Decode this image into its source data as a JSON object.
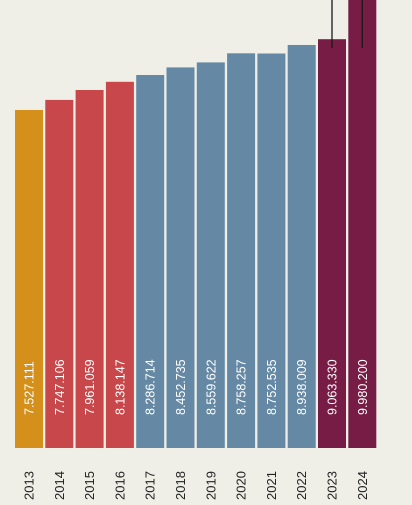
{
  "chart_data": {
    "type": "bar",
    "categories": [
      "2013",
      "2014",
      "2015",
      "2016",
      "2017",
      "2018",
      "2019",
      "2020",
      "2021",
      "2022",
      "2023",
      "2024"
    ],
    "values": [
      7527111,
      7747106,
      7961059,
      8138147,
      8286714,
      8452735,
      8559622,
      8758257,
      8752535,
      8938009,
      9063330,
      9980200
    ],
    "value_labels": [
      "7.527.111",
      "7.747.106",
      "7.961.059",
      "8.138.147",
      "8.286.714",
      "8.452.735",
      "8.559.622",
      "8.758.257",
      "8.752.535",
      "8.938.009",
      "9.063.330",
      "9.980.200"
    ],
    "bar_colors": [
      "#d4901a",
      "#c8474a",
      "#c8474a",
      "#c8474a",
      "#6589a5",
      "#6589a5",
      "#6589a5",
      "#6589a5",
      "#6589a5",
      "#6589a5",
      "#761c45",
      "#761c45"
    ],
    "error_bars": [
      {
        "category": "2023"
      },
      {
        "category": "2024"
      }
    ],
    "title": "",
    "xlabel": "",
    "ylabel": "",
    "grid": false,
    "legend": "none"
  }
}
